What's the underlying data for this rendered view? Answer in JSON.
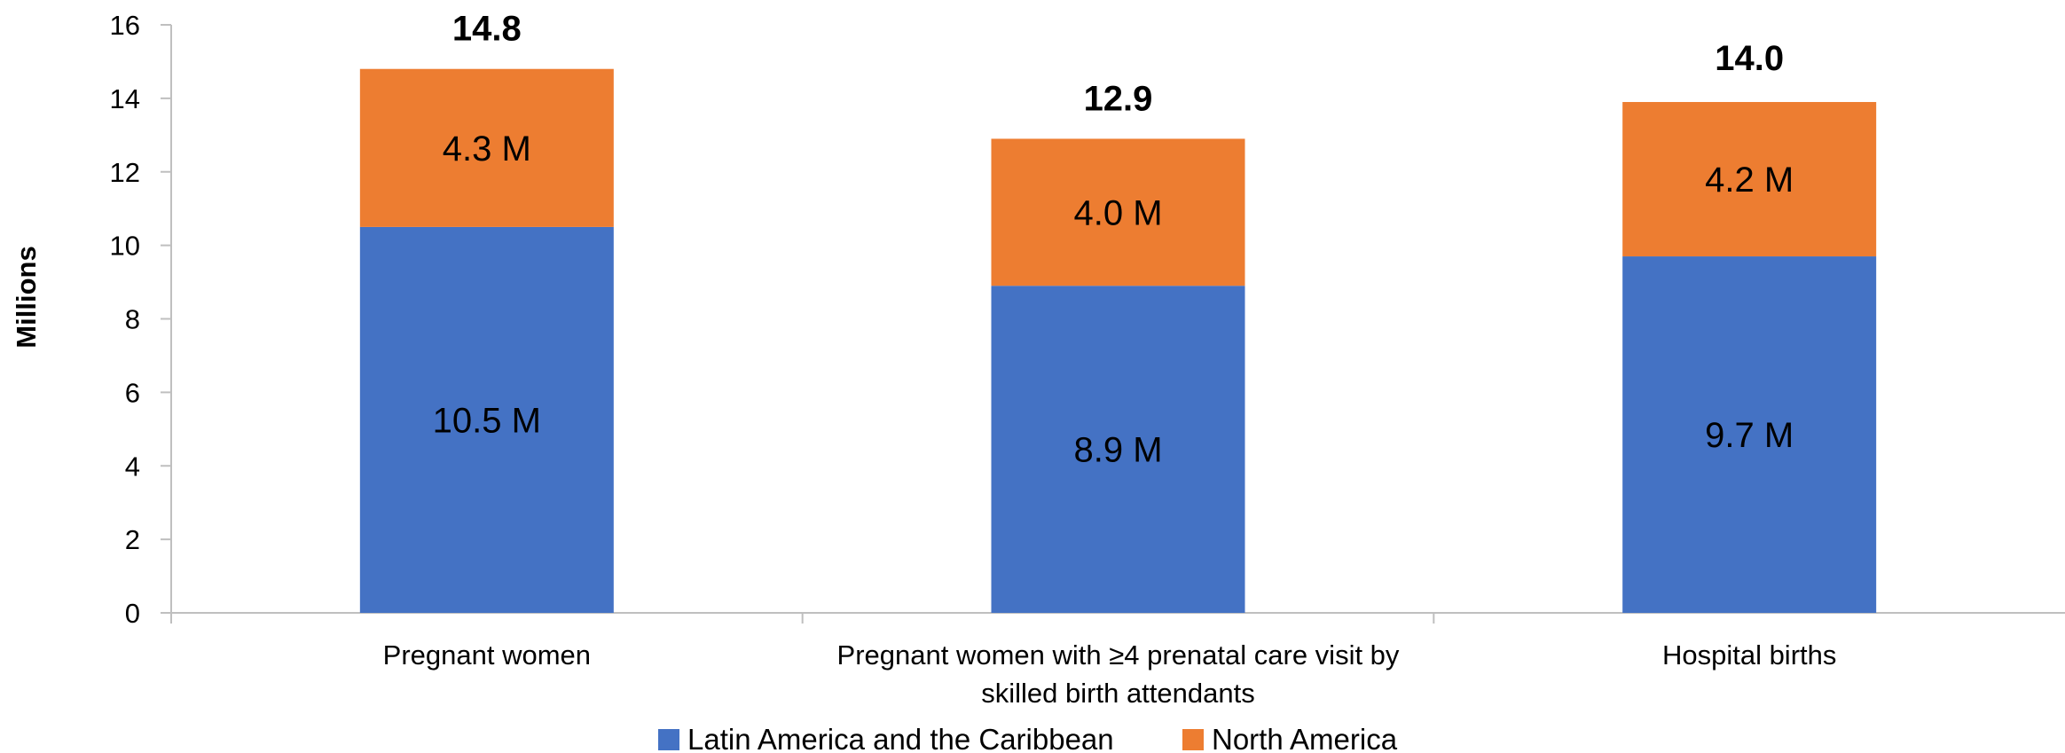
{
  "chart_data": {
    "type": "bar",
    "stacked": true,
    "title": "",
    "xlabel": "",
    "ylabel": "Millions",
    "ylim": [
      0,
      16
    ],
    "yticks": [
      0,
      2,
      4,
      6,
      8,
      10,
      12,
      14,
      16
    ],
    "grid": false,
    "legend_position": "bottom",
    "categories": [
      [
        "Pregnant women"
      ],
      [
        "Pregnant women with ≥4 prenatal care visit by",
        "skilled birth attendants"
      ],
      [
        "Hospital births"
      ]
    ],
    "series": [
      {
        "name": "Latin America and the Caribbean",
        "color": "#4472C4",
        "values": [
          10.5,
          8.9,
          9.7
        ],
        "labels": [
          "10.5 M",
          "8.9 M",
          "9.7 M"
        ]
      },
      {
        "name": "North America",
        "color": "#ED7D31",
        "values": [
          4.3,
          4.0,
          4.2
        ],
        "labels": [
          "4.3 M",
          "4.0 M",
          "4.2 M"
        ]
      }
    ],
    "totals": [
      14.8,
      12.9,
      14.0
    ],
    "total_labels": [
      "14.8",
      "12.9",
      "14.0"
    ]
  }
}
